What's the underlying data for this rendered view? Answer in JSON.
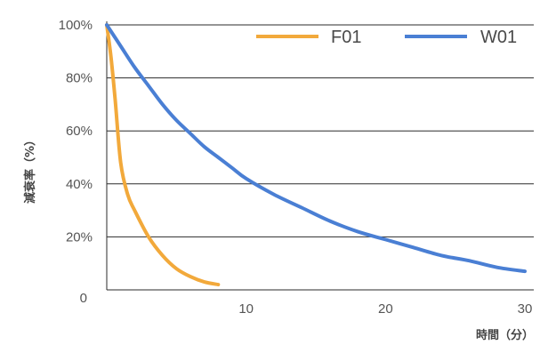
{
  "chart_data": {
    "type": "line",
    "title": "",
    "xlabel": "時間（分）",
    "ylabel": "減衰率（%）",
    "xlim": [
      0,
      30
    ],
    "ylim": [
      0,
      100
    ],
    "x_ticks": [
      "10",
      "20",
      "30"
    ],
    "y_ticks": [
      "0",
      "20%",
      "40%",
      "60%",
      "80%",
      "100%"
    ],
    "grid": "horizontal",
    "legend_position": "top-right",
    "series": [
      {
        "name": "F01",
        "color": "#f2a93b",
        "x": [
          0,
          0.3,
          0.6,
          1,
          1.5,
          2,
          3,
          4,
          5,
          6,
          7,
          8
        ],
        "y": [
          100,
          88,
          72,
          48,
          36,
          30,
          20,
          13,
          8,
          5,
          3,
          2
        ]
      },
      {
        "name": "W01",
        "color": "#4a7fd4",
        "x": [
          0,
          1,
          2,
          3,
          4,
          5,
          6,
          7,
          8,
          9,
          10,
          12,
          14,
          16,
          18,
          20,
          22,
          24,
          26,
          28,
          30
        ],
        "y": [
          100,
          92,
          84,
          77,
          70,
          64,
          59,
          54,
          50,
          46,
          42,
          36,
          31,
          26,
          22,
          19,
          16,
          13,
          11,
          8.5,
          7
        ]
      }
    ]
  }
}
